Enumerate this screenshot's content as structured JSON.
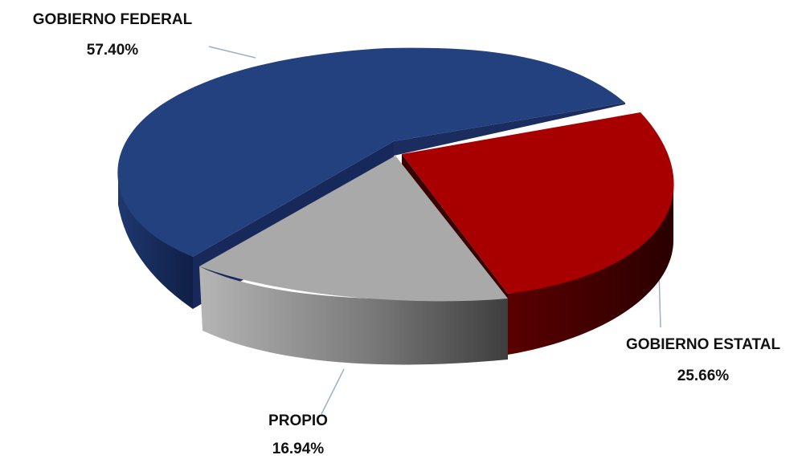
{
  "chart_data": {
    "type": "pie",
    "style": "3d-exploded",
    "slices": [
      {
        "label": "GOBIERNO FEDERAL",
        "value": 57.4,
        "percent_text": "57.40%",
        "color": "#24417F"
      },
      {
        "label": "GOBIERNO ESTATAL",
        "value": 25.66,
        "percent_text": "25.66%",
        "color": "#A80000"
      },
      {
        "label": "PROPIO",
        "value": 16.94,
        "percent_text": "16.94%",
        "color": "#A9A9A9"
      }
    ],
    "legend": "none",
    "leader_line_color": "#9AB0C8"
  }
}
